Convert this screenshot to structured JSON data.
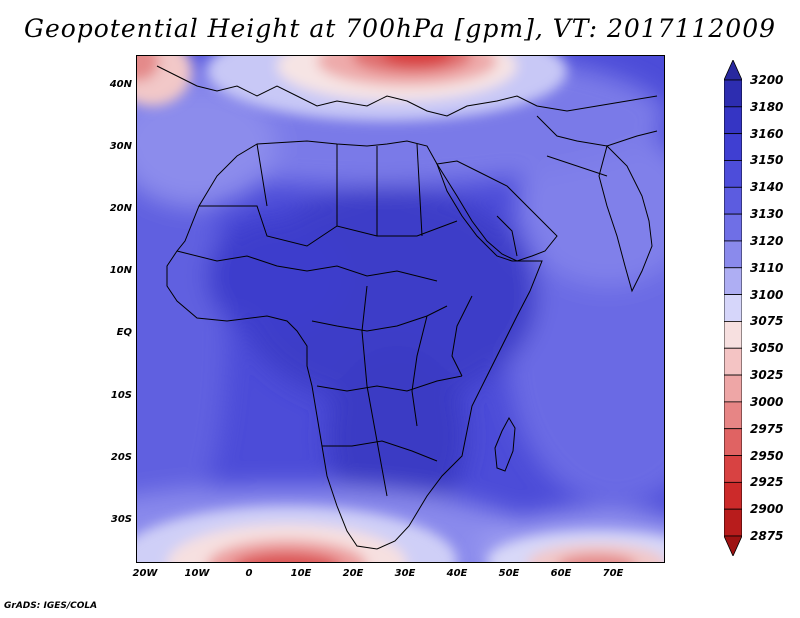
{
  "title": "Geopotential Height at 700hPa [gpm], VT: 2017112009",
  "footer": "GrADS: IGES/COLA",
  "y_axis_labels": [
    "40N",
    "30N",
    "20N",
    "10N",
    "EQ",
    "10S",
    "20S",
    "30S"
  ],
  "x_axis_labels": [
    "20W",
    "10W",
    "0",
    "10E",
    "20E",
    "30E",
    "40E",
    "50E",
    "60E",
    "70E"
  ],
  "colorbar": {
    "labels": [
      "3200",
      "3180",
      "3160",
      "3150",
      "3140",
      "3130",
      "3120",
      "3110",
      "3100",
      "3075",
      "3050",
      "3025",
      "3000",
      "2975",
      "2950",
      "2925",
      "2900",
      "2875"
    ],
    "colors": [
      "#28289e",
      "#2d2db0",
      "#3535c4",
      "#3f3fd2",
      "#4d4dda",
      "#5c5ce0",
      "#6f6fe6",
      "#8a8aec",
      "#aeaef3",
      "#d6d6fa",
      "#f7e0e0",
      "#f4c4c4",
      "#eea6a6",
      "#e78585",
      "#e06363",
      "#d84242",
      "#cc2a2a",
      "#b81c1c",
      "#9e1212"
    ]
  }
}
